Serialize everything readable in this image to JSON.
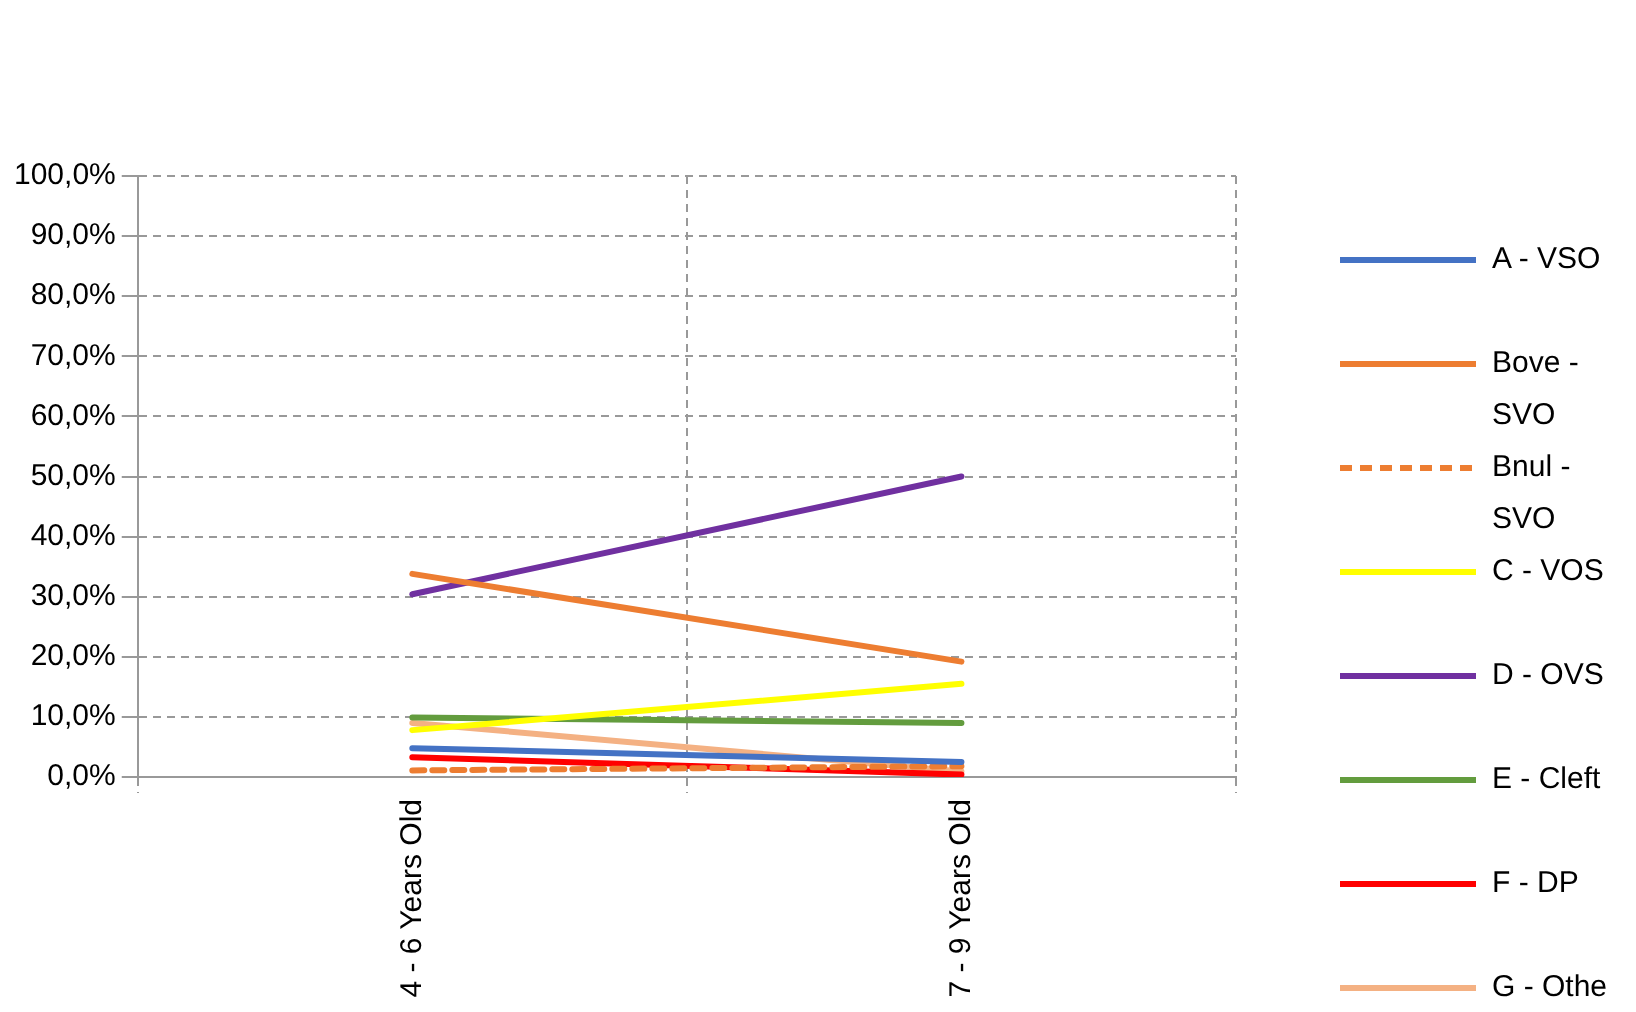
{
  "chart_data": {
    "type": "line",
    "categories": [
      "4 - 6 Years Old",
      "7 - 9 Years Old"
    ],
    "series": [
      {
        "name": "A - VSO",
        "color": "#4472c4",
        "values": [
          4.8,
          2.5
        ]
      },
      {
        "name": "Bove - SVO",
        "color": "#ed7d31",
        "values": [
          33.8,
          19.2
        ]
      },
      {
        "name": "Bnul - SVO",
        "color": "#ed7d31",
        "values": [
          1.1,
          1.8
        ],
        "line_style": "dashed"
      },
      {
        "name": "C - VOS",
        "color": "#ffff00",
        "values": [
          7.8,
          15.5
        ]
      },
      {
        "name": "D - OVS",
        "color": "#7030a0",
        "values": [
          30.4,
          50.0
        ]
      },
      {
        "name": "E - Cleft",
        "color": "#639c3e",
        "values": [
          9.9,
          9.0
        ]
      },
      {
        "name": "F - DP",
        "color": "#ff0000",
        "values": [
          3.3,
          0.4
        ]
      },
      {
        "name": "G - Othe",
        "color": "#f4b183",
        "values": [
          9.0,
          0.9
        ]
      }
    ],
    "ylim": [
      0,
      100
    ],
    "yticks": [
      {
        "value": 0,
        "label": "0,0%"
      },
      {
        "value": 10,
        "label": "10,0%"
      },
      {
        "value": 20,
        "label": "20,0%"
      },
      {
        "value": 30,
        "label": "30,0%"
      },
      {
        "value": 40,
        "label": "40,0%"
      },
      {
        "value": 50,
        "label": "50,0%"
      },
      {
        "value": 60,
        "label": "60,0%"
      },
      {
        "value": 70,
        "label": "70,0%"
      },
      {
        "value": 80,
        "label": "80,0%"
      },
      {
        "value": 90,
        "label": "90,0%"
      },
      {
        "value": 100,
        "label": "100,0%"
      }
    ],
    "grid": true,
    "legend": "right",
    "marker": "none",
    "line_style": "solid"
  }
}
